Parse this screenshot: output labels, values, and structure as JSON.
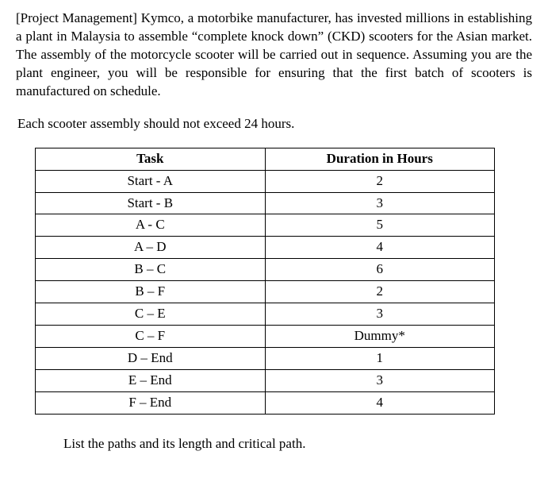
{
  "intro": "[Project Management] Kymco, a motorbike manufacturer, has invested millions in establishing a plant in Malaysia to assemble “complete knock down” (CKD) scooters for the Asian market. The assembly of the motorcycle scooter will be carried out in sequence. Assuming you are the plant engineer, you will be responsible for ensuring that the first batch of scooters is manufactured on schedule.",
  "constraint": "Each scooter assembly should not exceed 24 hours.",
  "table": {
    "headers": {
      "task": "Task",
      "duration": "Duration in Hours"
    },
    "rows": [
      {
        "task": "Start - A",
        "duration": "2"
      },
      {
        "task": "Start - B",
        "duration": "3"
      },
      {
        "task": "A - C",
        "duration": "5"
      },
      {
        "task": "A – D",
        "duration": "4"
      },
      {
        "task": "B – C",
        "duration": "6"
      },
      {
        "task": "B – F",
        "duration": "2"
      },
      {
        "task": "C – E",
        "duration": "3"
      },
      {
        "task": "C – F",
        "duration": "Dummy*"
      },
      {
        "task": "D – End",
        "duration": "1"
      },
      {
        "task": "E – End",
        "duration": "3"
      },
      {
        "task": "F – End",
        "duration": "4"
      }
    ]
  },
  "closing": "List the paths and its length and critical path."
}
